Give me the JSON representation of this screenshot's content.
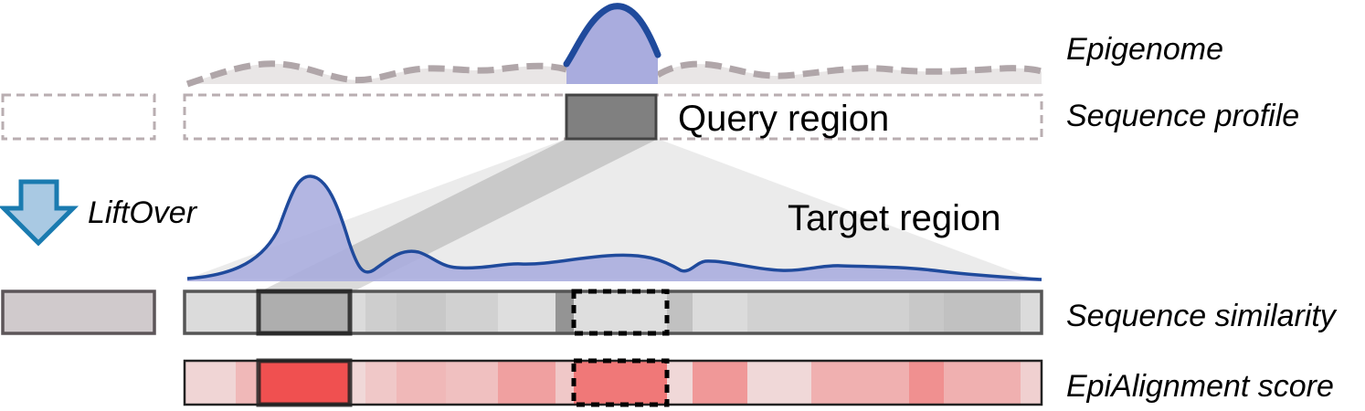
{
  "labels": {
    "epigenome": "Epigenome",
    "sequence_profile": "Sequence profile",
    "query_region": "Query region",
    "target_region": "Target region",
    "liftover": "LiftOver",
    "sequence_similarity": "Sequence similarity",
    "epialignment_score": "EpiAlignment score"
  },
  "colors": {
    "signal_fill": "#A9ACDE",
    "signal_line": "#1F4A9C",
    "background_signal_line": "#B0A6A9",
    "background_signal_fill": "#E9E6E6",
    "dashed_box": "#B9AEB1",
    "query_box": "#808080",
    "liftover_arrow_fill": "#A9C9E3",
    "liftover_arrow_stroke": "#1A7BB0",
    "similarity_bar_stroke": "#555555",
    "epialignment_bar_stroke": "#222222",
    "best_match_fill": "#ED4C4C"
  },
  "icons": {
    "liftover_arrow": "down-arrow-icon"
  },
  "sequence_similarity_levels": [
    0.1,
    0.1,
    0.45,
    0.1,
    0.2,
    0.25,
    0.18,
    0.08,
    0.65,
    0.08,
    0.3,
    0.1,
    0.18,
    0.18,
    0.25,
    0.3,
    0.1
  ],
  "epialignment_levels": [
    0.12,
    0.3,
    0.95,
    0.1,
    0.2,
    0.3,
    0.25,
    0.45,
    0.2,
    0.7,
    0.1,
    0.5,
    0.1,
    0.35,
    0.55,
    0.35,
    0.15
  ]
}
